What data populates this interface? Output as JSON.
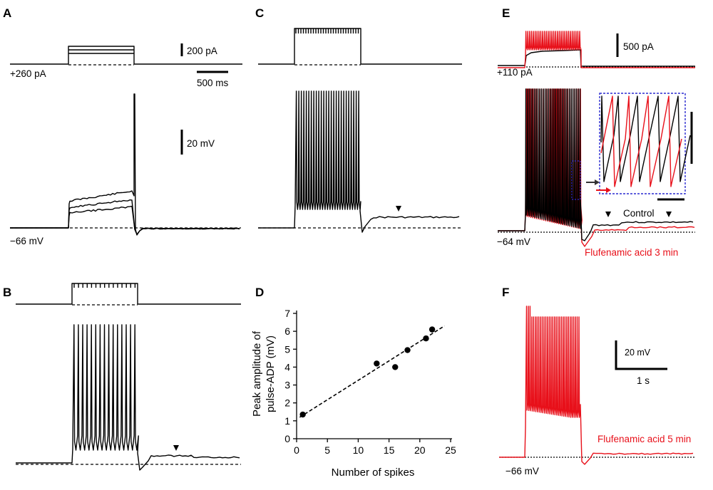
{
  "panels": {
    "A": {
      "label": "A",
      "current_value": "+260 pA",
      "vm_value": "−66 mV",
      "scale_current": "200 pA",
      "scale_time": "500 ms",
      "scale_voltage": "20 mV"
    },
    "B": {
      "label": "B"
    },
    "C": {
      "label": "C"
    },
    "D": {
      "label": "D"
    },
    "E": {
      "label": "E",
      "current_value": "+110 pA",
      "vm_value": "−64 mV",
      "scale_current": "500 pA",
      "control_label": "Control",
      "drug_label": "Flufenamic acid 3 min"
    },
    "F": {
      "label": "F",
      "vm_value": "−66 mV",
      "scale_voltage": "20 mV",
      "scale_time": "1 s",
      "drug_label": "Flufenamic acid 5 min"
    }
  },
  "colors": {
    "control": "#000000",
    "drug": "#e8101a",
    "inset_border": "#2a2ad0"
  },
  "chart_data": {
    "type": "scatter",
    "title": "",
    "xlabel": "Number of spikes",
    "ylabel_line1": "Peak amplitude of",
    "ylabel_line2": "pulse-ADP (mV)",
    "xlim": [
      0,
      25
    ],
    "ylim": [
      0,
      7
    ],
    "xticks": [
      0,
      5,
      10,
      15,
      20,
      25
    ],
    "yticks": [
      0,
      1,
      2,
      3,
      4,
      5,
      6,
      7
    ],
    "points": [
      {
        "x": 1,
        "y": 1.35
      },
      {
        "x": 13,
        "y": 4.2
      },
      {
        "x": 16,
        "y": 4.0
      },
      {
        "x": 18,
        "y": 4.95
      },
      {
        "x": 21,
        "y": 5.6
      },
      {
        "x": 22,
        "y": 6.1
      }
    ],
    "fit": {
      "x": [
        0.5,
        24
      ],
      "y": [
        1.2,
        6.3
      ],
      "style": "dashed"
    }
  }
}
